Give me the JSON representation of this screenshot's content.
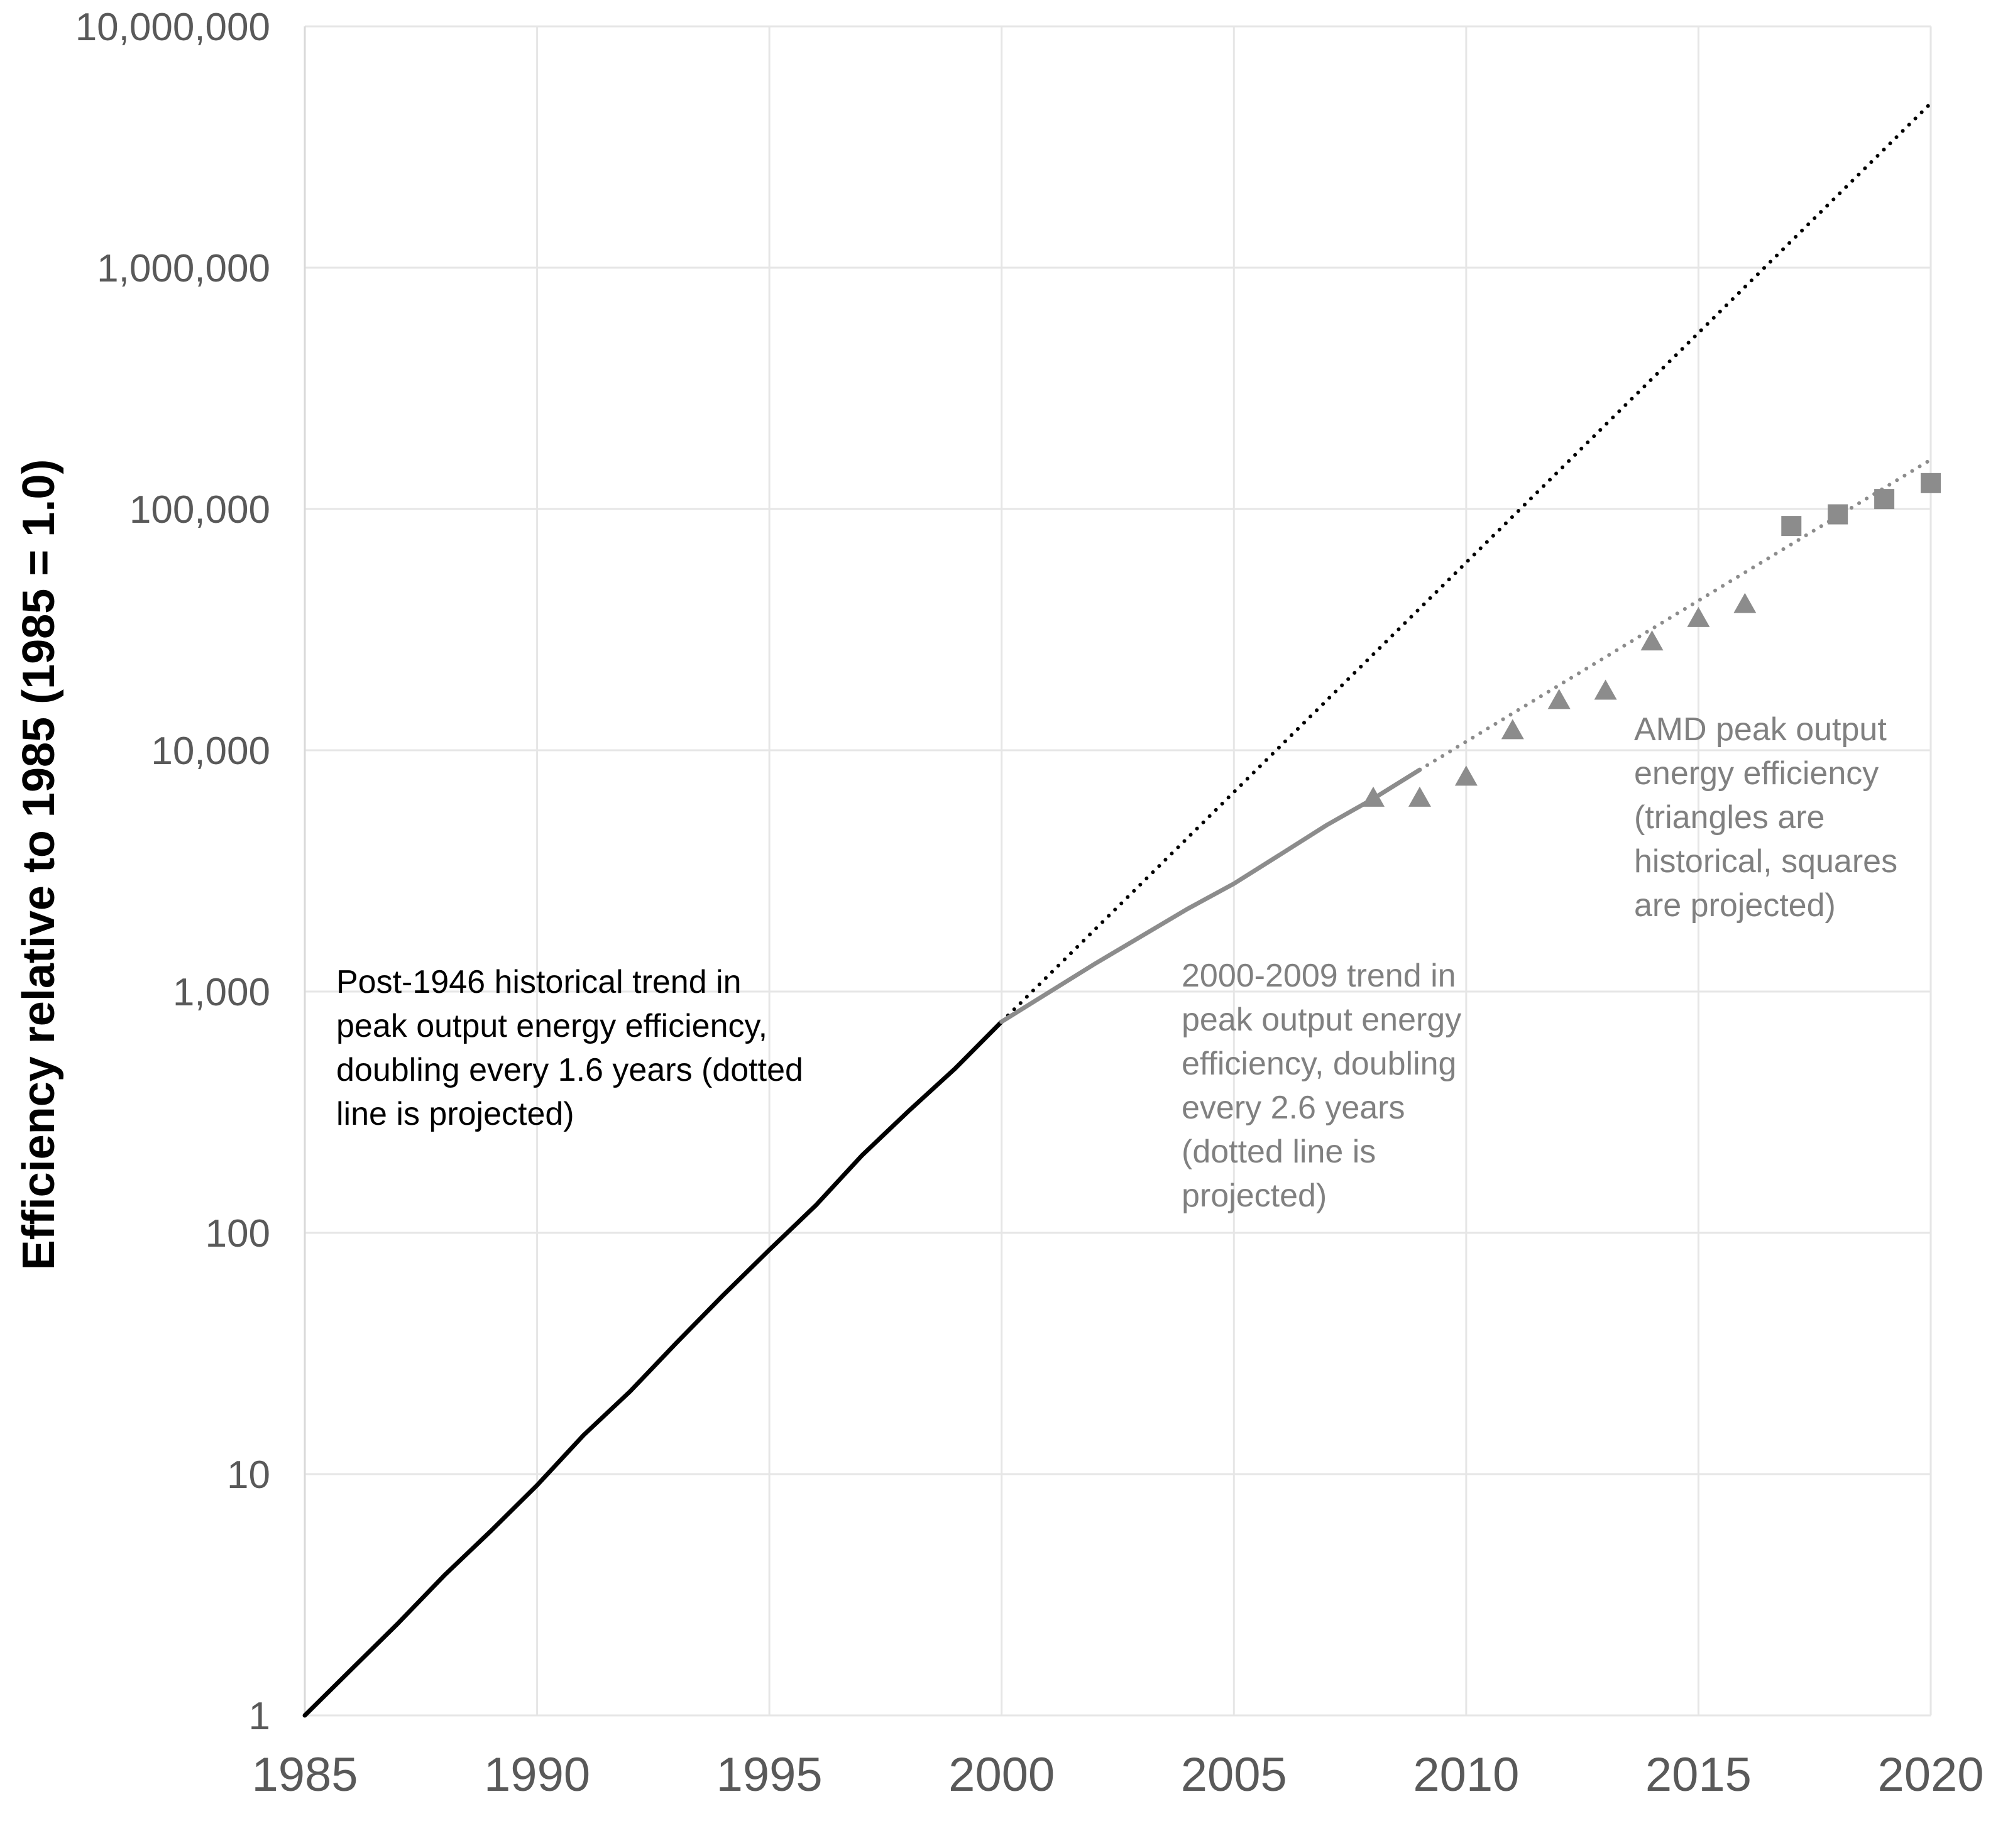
{
  "chart_data": {
    "type": "line",
    "title": "",
    "xlabel": "",
    "ylabel": "Efficiency relative to 1985 (1985 = 1.0)",
    "y_scale": "log",
    "xlim": [
      1985,
      2020
    ],
    "ylim": [
      1,
      10000000
    ],
    "grid": true,
    "x_ticks": [
      {
        "value": 1985,
        "label": "1985"
      },
      {
        "value": 1990,
        "label": "1990"
      },
      {
        "value": 1995,
        "label": "1995"
      },
      {
        "value": 2000,
        "label": "2000"
      },
      {
        "value": 2005,
        "label": "2005"
      },
      {
        "value": 2010,
        "label": "2010"
      },
      {
        "value": 2015,
        "label": "2015"
      },
      {
        "value": 2020,
        "label": "2020"
      }
    ],
    "y_ticks": [
      {
        "value": 1,
        "label": "1"
      },
      {
        "value": 10,
        "label": "10"
      },
      {
        "value": 100,
        "label": "100"
      },
      {
        "value": 1000,
        "label": "1,000"
      },
      {
        "value": 10000,
        "label": "10,000"
      },
      {
        "value": 100000,
        "label": "100,000"
      },
      {
        "value": 1000000,
        "label": "1,000,000"
      },
      {
        "value": 10000000,
        "label": "10,000,000"
      }
    ],
    "series": [
      {
        "style": "solid",
        "color": "#000000",
        "x": [
          1985,
          1986,
          1987,
          1988,
          1989,
          1990,
          1991,
          1992,
          1993,
          1994,
          1995,
          1996,
          1997,
          1998,
          1999,
          2000
        ],
        "y": [
          1,
          1.55,
          2.4,
          3.8,
          5.8,
          9,
          14.5,
          22,
          35,
          55,
          85,
          130,
          210,
          320,
          480,
          750
        ]
      },
      {
        "style": "dotted",
        "color": "#000000",
        "x": [
          2000,
          2020
        ],
        "y": [
          750,
          4800000
        ]
      },
      {
        "style": "solid",
        "color": "#8c8c8c",
        "x": [
          2000,
          2002,
          2004,
          2005,
          2006,
          2007,
          2008,
          2009
        ],
        "y": [
          750,
          1300,
          2200,
          2800,
          3700,
          4900,
          6300,
          8300
        ]
      },
      {
        "style": "dotted",
        "color": "#8c8c8c",
        "x": [
          2009,
          2020
        ],
        "y": [
          8300,
          160000
        ]
      },
      {
        "style": "triangle",
        "color": "#8c8c8c",
        "x": [
          2008,
          2009,
          2010,
          2011,
          2012,
          2013,
          2014,
          2015,
          2016
        ],
        "y": [
          6300,
          6300,
          7700,
          12000,
          16000,
          17500,
          28000,
          35000,
          40000
        ]
      },
      {
        "style": "square",
        "color": "#8c8c8c",
        "x": [
          2017,
          2018,
          2019,
          2020
        ],
        "y": [
          85000,
          95000,
          110000,
          128000
        ]
      }
    ],
    "annotations": [
      {
        "anchor": "middle-left",
        "color": "#000000",
        "lines": [
          "Post-1946 historical trend in",
          "peak output energy efficiency,",
          "doubling every 1.6 years (dotted",
          "line is projected)"
        ]
      },
      {
        "anchor": "center",
        "color": "#808080",
        "lines": [
          "2000-2009 trend in",
          "peak output energy",
          "efficiency, doubling",
          "every 2.6 years",
          "(dotted line is",
          "projected)"
        ]
      },
      {
        "anchor": "upper-right",
        "color": "#808080",
        "lines": [
          "AMD peak output",
          "energy efficiency",
          "(triangles are",
          "historical, squares",
          "are projected)"
        ]
      }
    ]
  }
}
